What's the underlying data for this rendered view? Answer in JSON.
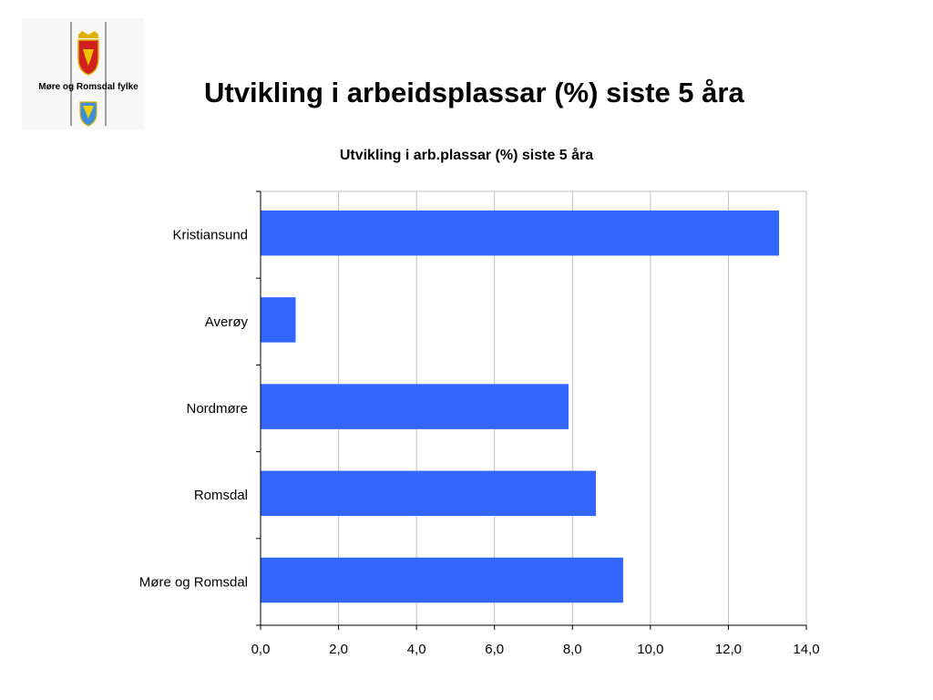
{
  "slide": {
    "title": "Utvikling i arbeidsplassar (%) siste 5 åra",
    "logo_text": "Møre og Romsdal fylke"
  },
  "chart_data": {
    "type": "bar",
    "orientation": "horizontal",
    "title": "Utvikling i arb.plassar (%) siste 5 åra",
    "categories": [
      "Kristiansund",
      "Averøy",
      "Nordmøre",
      "Romsdal",
      "Møre og Romsdal"
    ],
    "values": [
      13.3,
      0.9,
      7.9,
      8.6,
      9.3
    ],
    "xlim": [
      0,
      14
    ],
    "x_ticks": [
      0,
      2,
      4,
      6,
      8,
      10,
      12,
      14
    ],
    "x_tick_labels": [
      "0,0",
      "2,0",
      "4,0",
      "6,0",
      "8,0",
      "10,0",
      "12,0",
      "14,0"
    ],
    "xlabel": "",
    "ylabel": "",
    "grid": "vertical",
    "bar_color": "#3366ff",
    "grid_color": "#c0c0c0"
  }
}
